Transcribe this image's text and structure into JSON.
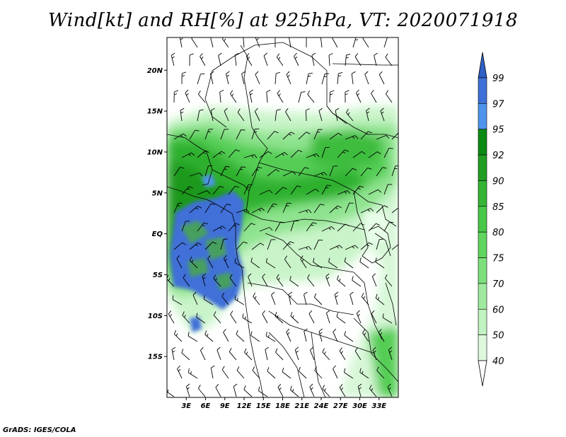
{
  "title": "Wind[kt] and RH[%] at 925hPa, VT: 2020071918",
  "footer": "GrADS: IGES/COLA",
  "map": {
    "lon_range": [
      0,
      36
    ],
    "lat_range": [
      -20,
      24
    ],
    "lat_ticks": [
      {
        "value": 20,
        "label": "20N"
      },
      {
        "value": 15,
        "label": "15N"
      },
      {
        "value": 10,
        "label": "10N"
      },
      {
        "value": 5,
        "label": "5N"
      },
      {
        "value": 0,
        "label": "EQ"
      },
      {
        "value": -5,
        "label": "5S"
      },
      {
        "value": -10,
        "label": "10S"
      },
      {
        "value": -15,
        "label": "15S"
      }
    ],
    "lon_ticks": [
      {
        "value": 3,
        "label": "3E"
      },
      {
        "value": 6,
        "label": "6E"
      },
      {
        "value": 9,
        "label": "9E"
      },
      {
        "value": 12,
        "label": "12E"
      },
      {
        "value": 15,
        "label": "15E"
      },
      {
        "value": 18,
        "label": "18E"
      },
      {
        "value": 21,
        "label": "21E"
      },
      {
        "value": 24,
        "label": "24E"
      },
      {
        "value": 27,
        "label": "27E"
      },
      {
        "value": 30,
        "label": "30E"
      },
      {
        "value": 33,
        "label": "33E"
      }
    ]
  },
  "colorbar": {
    "levels": [
      "99",
      "97",
      "95",
      "92",
      "90",
      "85",
      "80",
      "75",
      "70",
      "60",
      "50",
      "40"
    ],
    "colors": [
      "#3f70d8",
      "#4f94ec",
      "#0b8a13",
      "#219e22",
      "#35b435",
      "#48c848",
      "#60d660",
      "#7de07d",
      "#a0eaa0",
      "#c1f2c1",
      "#def8de",
      "#ffffff"
    ],
    "top_color": "#2e5fc7"
  }
}
